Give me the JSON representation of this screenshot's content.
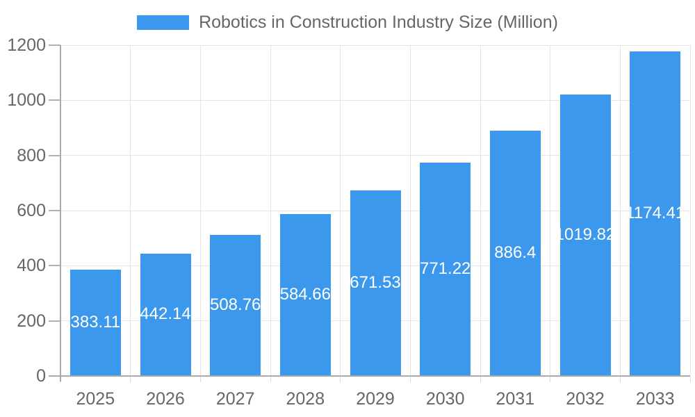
{
  "legend": {
    "label": "Robotics in Construction Industry Size (Million)",
    "swatch_color": "#3B98EC"
  },
  "colors": {
    "bar": "#3B98EC",
    "bar_value_label": "#ffffff",
    "grid": "#e5e5e5",
    "axis": "#aaaaaa",
    "y_tick": "#b0b0b0",
    "x_tick": "#dcdcdc",
    "tick_label_text": "#666666",
    "legend_text": "#666666",
    "background": "#ffffff"
  },
  "chart_data": {
    "type": "bar",
    "title": "Robotics in Construction Industry Size (Million)",
    "categories": [
      "2025",
      "2026",
      "2027",
      "2028",
      "2029",
      "2030",
      "2031",
      "2032",
      "2033"
    ],
    "values": [
      383.11,
      442.14,
      508.76,
      584.66,
      671.53,
      771.22,
      886.4,
      1019.82,
      1174.41
    ],
    "value_labels": [
      "383.11",
      "442.14",
      "508.76",
      "584.66",
      "671.53",
      "771.22",
      "886.4",
      "1019.82",
      "1174.41"
    ],
    "xlabel": "",
    "ylabel": "",
    "ylim": [
      0,
      1200
    ],
    "yticks": [
      0,
      200,
      400,
      600,
      800,
      1000,
      1200
    ],
    "grid": true,
    "legend_position": "top",
    "value_label_position": "inside-center"
  }
}
